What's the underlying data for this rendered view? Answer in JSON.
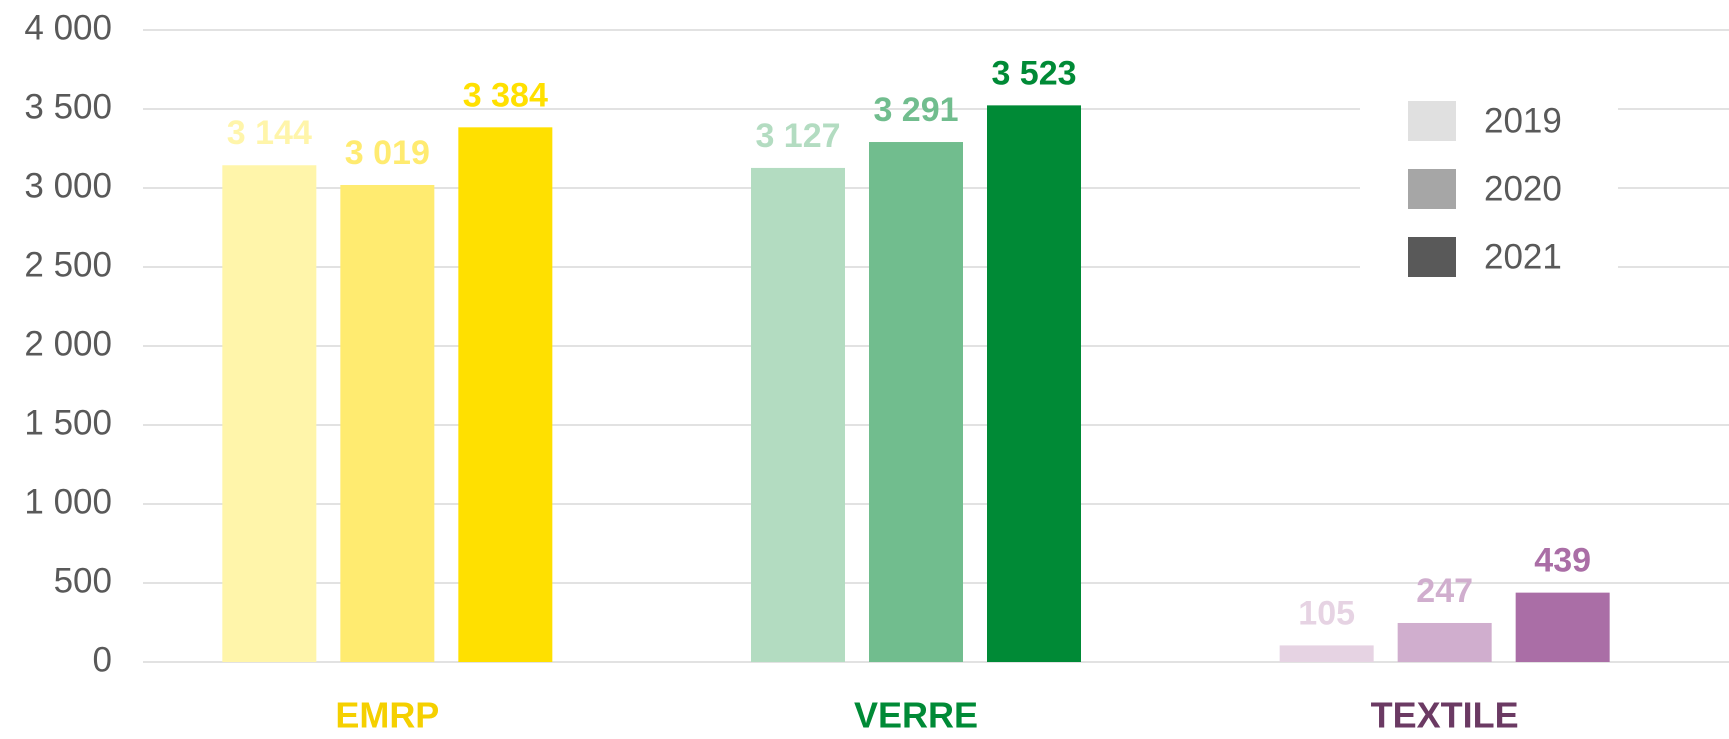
{
  "chart_data": {
    "type": "bar",
    "categories": [
      "EMRP",
      "VERRE",
      "TEXTILE"
    ],
    "category_colors": [
      "#f5d000",
      "#008a36",
      "#6b3a63"
    ],
    "series": [
      {
        "name": "2019",
        "color": "#e0e0e0",
        "colors": [
          "#fff5aa",
          "#b3dcc1",
          "#e6d3e3"
        ],
        "values": [
          3144,
          3127,
          105
        ],
        "value_labels": [
          "3 144",
          "3 127",
          "105"
        ]
      },
      {
        "name": "2020",
        "color": "#a6a6a6",
        "colors": [
          "#ffeb70",
          "#71bd8e",
          "#d0aece"
        ],
        "values": [
          3019,
          3291,
          247
        ],
        "value_labels": [
          "3 019",
          "3 291",
          "247"
        ]
      },
      {
        "name": "2021",
        "color": "#595959",
        "colors": [
          "#ffe000",
          "#008a36",
          "#aa6ea6"
        ],
        "values": [
          3384,
          3523,
          439
        ],
        "value_labels": [
          "3 384",
          "3 523",
          "439"
        ]
      }
    ],
    "ylim": [
      0,
      4000
    ],
    "yticks": [
      0,
      500,
      {
        "value": 1000,
        "label": "1 000"
      },
      {
        "value": 1500,
        "label": "1 500"
      },
      {
        "value": 2000,
        "label": "2 000"
      },
      {
        "value": 2500,
        "label": "2 500"
      },
      {
        "value": 3000,
        "label": "3 000"
      },
      {
        "value": 3500,
        "label": "3 500"
      },
      {
        "value": 4000,
        "label": "4 000"
      }
    ],
    "grid": true,
    "legend": "upper right"
  }
}
